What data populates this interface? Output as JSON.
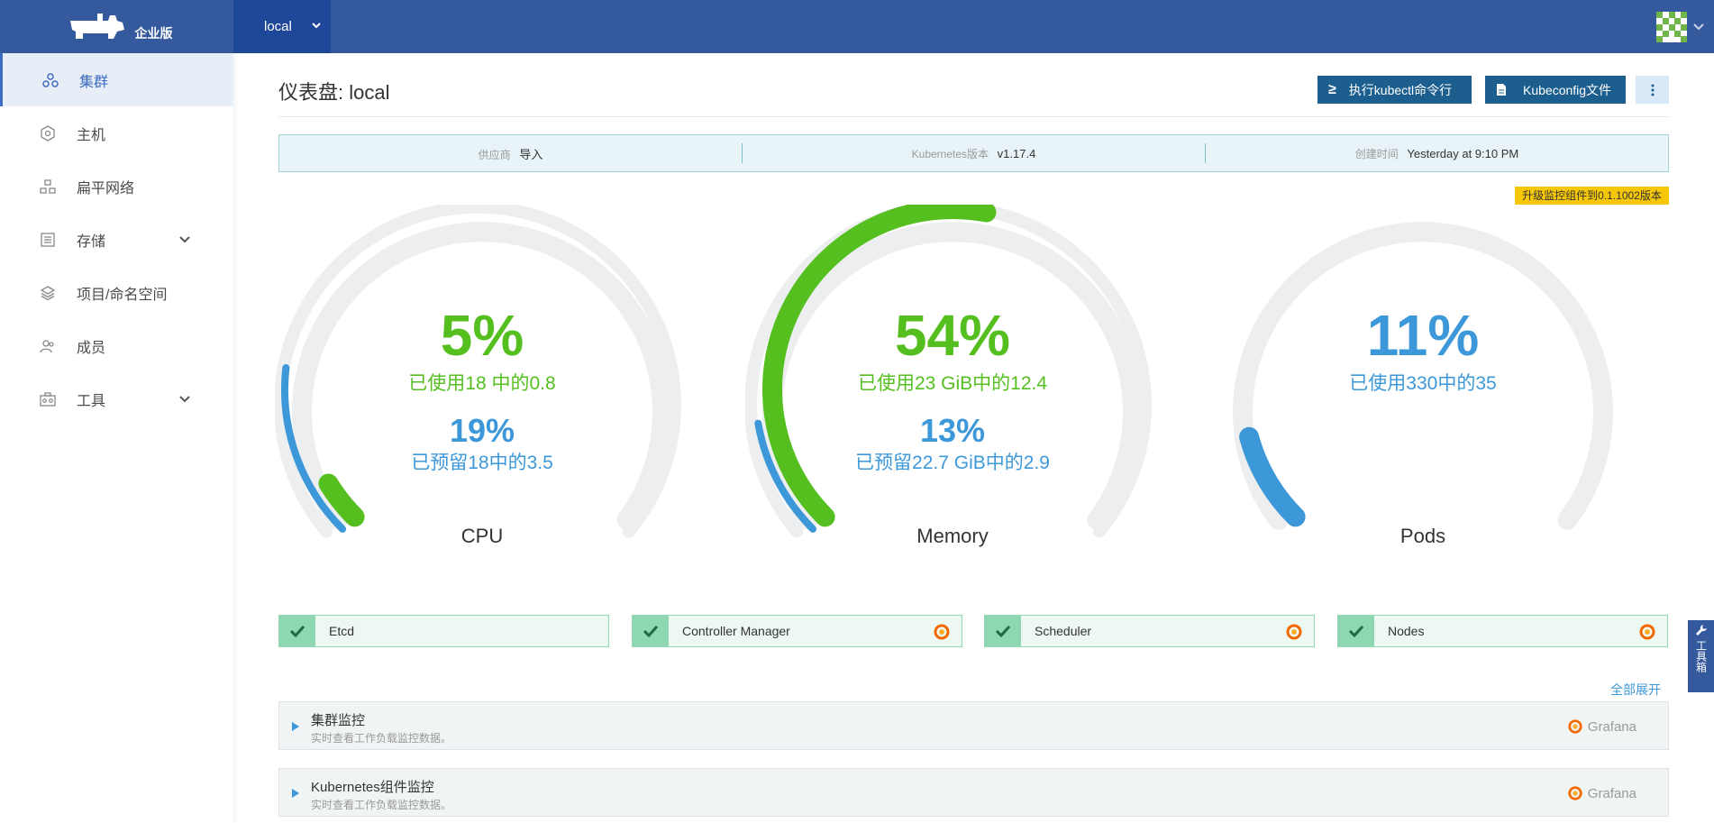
{
  "header": {
    "logo_text": "企业版",
    "cluster": "local",
    "logo_icon": "cow-logo-icon",
    "avatar_icon": "avatar-icon"
  },
  "sidebar": {
    "items": [
      {
        "label": "集群",
        "icon": "cluster-icon",
        "active": true
      },
      {
        "label": "主机",
        "icon": "host-icon"
      },
      {
        "label": "扁平网络",
        "icon": "network-icon"
      },
      {
        "label": "存储",
        "icon": "storage-icon",
        "expandable": true
      },
      {
        "label": "项目/命名空间",
        "icon": "layers-icon"
      },
      {
        "label": "成员",
        "icon": "members-icon"
      },
      {
        "label": "工具",
        "icon": "tools-icon",
        "expandable": true
      }
    ]
  },
  "main": {
    "title": "仪表盘: local",
    "kubectl_button": "执行kubectl命令行",
    "kubeconfig_button": "Kubeconfig文件",
    "info": {
      "provider_label": "供应商",
      "provider_value": "导入",
      "k8s_label": "Kubernetes版本",
      "k8s_value": "v1.17.4",
      "created_label": "创建时间",
      "created_value": "Yesterday at 9:10 PM"
    },
    "upgrade_badge": "升级监控组件到0.1.1002版本",
    "gauges": {
      "cpu": {
        "used_pct": "5%",
        "used_text": "已使用18 中的0.8",
        "reserved_pct": "19%",
        "reserved_text": "已预留18中的3.5",
        "label": "CPU",
        "used_fraction": 0.05,
        "reserved_fraction": 0.19
      },
      "memory": {
        "used_pct": "54%",
        "used_text": "已使用23 GiB中的12.4",
        "reserved_pct": "13%",
        "reserved_text": "已预留22.7 GiB中的2.9",
        "label": "Memory",
        "used_fraction": 0.54,
        "reserved_fraction": 0.13
      },
      "pods": {
        "used_pct": "11%",
        "used_text": "已使用330中的35",
        "label": "Pods",
        "used_fraction": 0.11
      }
    },
    "components": [
      {
        "name": "Etcd",
        "grafana": false
      },
      {
        "name": "Controller Manager",
        "grafana": true
      },
      {
        "name": "Scheduler",
        "grafana": true
      },
      {
        "name": "Nodes",
        "grafana": true
      }
    ],
    "expand_all": "全部展开",
    "panels": [
      {
        "title": "集群监控",
        "subtitle": "实时查看工作负载监控数据。",
        "grafana": "Grafana"
      },
      {
        "title": "Kubernetes组件监控",
        "subtitle": "实时查看工作负载监控数据。",
        "grafana": "Grafana"
      }
    ]
  },
  "toolbox": {
    "label": "工具箱"
  },
  "colors": {
    "header": "#35599d",
    "green": "#55bf20",
    "blue": "#3d98d9",
    "track": "#eceeef"
  }
}
